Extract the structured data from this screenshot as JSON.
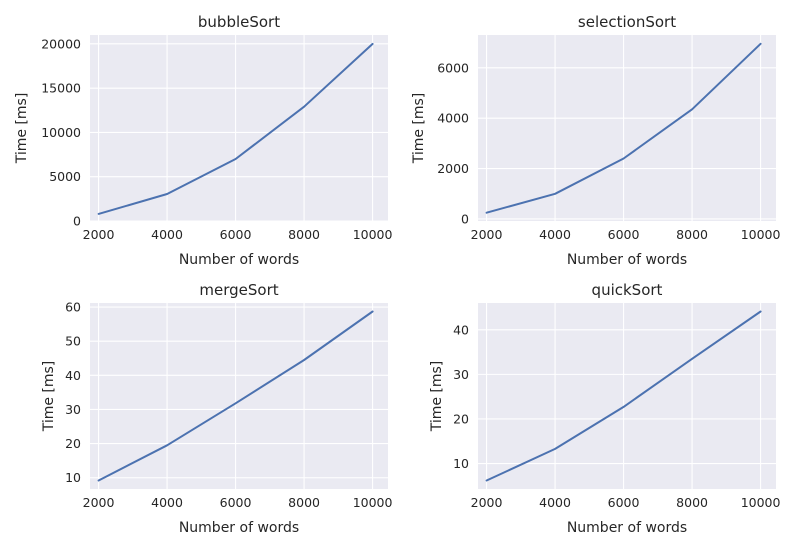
{
  "colors": {
    "series": "#4c72b0",
    "background": "#eaeaf2",
    "grid": "#ffffff"
  },
  "chart_data": [
    {
      "type": "line",
      "title": "bubbleSort",
      "xlabel": "Number of words",
      "ylabel": "Time [ms]",
      "x": [
        2000,
        4000,
        6000,
        8000,
        10000
      ],
      "series": [
        {
          "name": "bubbleSort",
          "values": [
            800,
            3050,
            7000,
            12900,
            20000
          ]
        }
      ],
      "xlim": [
        1750,
        10450
      ],
      "ylim": [
        0,
        21000
      ],
      "xticks": [
        2000,
        4000,
        6000,
        8000,
        10000
      ],
      "yticks": [
        0,
        5000,
        10000,
        15000,
        20000
      ]
    },
    {
      "type": "line",
      "title": "selectionSort",
      "xlabel": "Number of words",
      "ylabel": "Time [ms]",
      "x": [
        2000,
        4000,
        6000,
        8000,
        10000
      ],
      "series": [
        {
          "name": "selectionSort",
          "values": [
            250,
            1000,
            2400,
            4350,
            6950
          ]
        }
      ],
      "xlim": [
        1750,
        10450
      ],
      "ylim": [
        -80,
        7300
      ],
      "xticks": [
        2000,
        4000,
        6000,
        8000,
        10000
      ],
      "yticks": [
        0,
        2000,
        4000,
        6000
      ]
    },
    {
      "type": "line",
      "title": "mergeSort",
      "xlabel": "Number of words",
      "ylabel": "Time [ms]",
      "x": [
        2000,
        4000,
        6000,
        8000,
        10000
      ],
      "series": [
        {
          "name": "mergeSort",
          "values": [
            9.2,
            19.5,
            31.8,
            44.5,
            58.7
          ]
        }
      ],
      "xlim": [
        1750,
        10450
      ],
      "ylim": [
        6.7,
        61.2
      ],
      "xticks": [
        2000,
        4000,
        6000,
        8000,
        10000
      ],
      "yticks": [
        10,
        20,
        30,
        40,
        50,
        60
      ]
    },
    {
      "type": "line",
      "title": "quickSort",
      "xlabel": "Number of words",
      "ylabel": "Time [ms]",
      "x": [
        2000,
        4000,
        6000,
        8000,
        10000
      ],
      "series": [
        {
          "name": "quickSort",
          "values": [
            6.2,
            13.3,
            22.7,
            33.5,
            44.1
          ]
        }
      ],
      "xlim": [
        1750,
        10450
      ],
      "ylim": [
        4.3,
        46.0
      ],
      "xticks": [
        2000,
        4000,
        6000,
        8000,
        10000
      ],
      "yticks": [
        10,
        20,
        30,
        40
      ]
    }
  ]
}
